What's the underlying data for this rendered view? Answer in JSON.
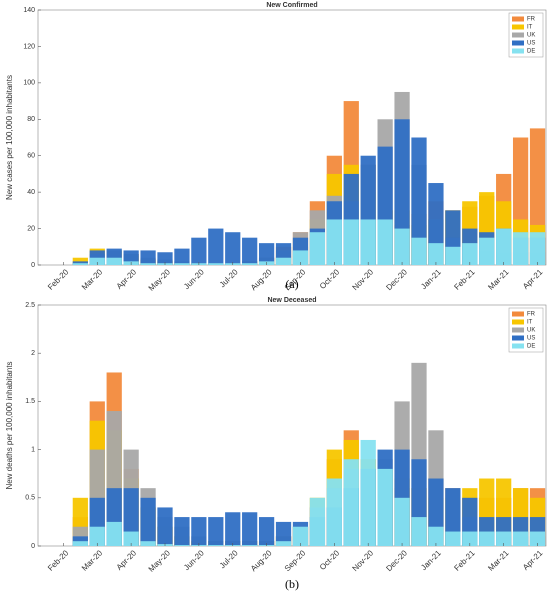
{
  "chart_data": [
    {
      "type": "bar",
      "title": "New Confirmed",
      "ylabel": "New cases per 100,000 inhabitants",
      "caption": "(a)",
      "categories": [
        null,
        "Feb-20",
        null,
        "Mar-20",
        null,
        "Apr-20",
        null,
        "May-20",
        null,
        "Jun-20",
        null,
        "Jul-20",
        null,
        "Aug-20",
        null,
        "Sep-20",
        null,
        "Oct-20",
        null,
        "Nov-20",
        null,
        "Dec-20",
        null,
        "Jan-21",
        null,
        "Feb-21",
        null,
        "Mar-21",
        null,
        "Apr-21"
      ],
      "series": [
        {
          "name": "FR",
          "color": "#f28a3c",
          "values": [
            0,
            0,
            1,
            4,
            7,
            6,
            3,
            2,
            1,
            1,
            1,
            1,
            2,
            4,
            10,
            18,
            35,
            60,
            90,
            55,
            30,
            22,
            28,
            35,
            30,
            32,
            38,
            50,
            70,
            75
          ]
        },
        {
          "name": "IT",
          "color": "#f7c600",
          "values": [
            0,
            0,
            4,
            9,
            8,
            5,
            3,
            2,
            1,
            1,
            1,
            1,
            2,
            3,
            5,
            10,
            25,
            50,
            55,
            40,
            30,
            30,
            22,
            25,
            30,
            35,
            40,
            35,
            25,
            22
          ]
        },
        {
          "name": "UK",
          "color": "#a8a8a8",
          "values": [
            0,
            0,
            1,
            6,
            8,
            6,
            4,
            3,
            2,
            1,
            1,
            1,
            2,
            4,
            8,
            18,
            30,
            38,
            35,
            55,
            80,
            95,
            55,
            25,
            15,
            10,
            8,
            7,
            7,
            7
          ]
        },
        {
          "name": "US",
          "color": "#2f6fc4",
          "values": [
            0,
            0,
            2,
            8,
            9,
            8,
            8,
            7,
            9,
            15,
            20,
            18,
            15,
            12,
            12,
            15,
            20,
            35,
            50,
            60,
            65,
            80,
            70,
            45,
            30,
            20,
            18,
            20,
            15,
            15
          ]
        },
        {
          "name": "DE",
          "color": "#86e2f0",
          "values": [
            0,
            0,
            1,
            4,
            4,
            2,
            1,
            1,
            1,
            1,
            1,
            1,
            1,
            2,
            4,
            8,
            18,
            25,
            25,
            25,
            25,
            20,
            15,
            12,
            10,
            12,
            15,
            20,
            18,
            18
          ]
        }
      ],
      "ylim": [
        0,
        140
      ],
      "yticks": [
        0,
        20,
        40,
        60,
        80,
        100,
        120,
        140
      ],
      "legend": "upper right"
    },
    {
      "type": "bar",
      "title": "New Deceased",
      "ylabel": "New deaths per 100,000 inhabitants",
      "caption": "(b)",
      "categories": [
        null,
        "Feb-20",
        null,
        "Mar-20",
        null,
        "Apr-20",
        null,
        "May-20",
        null,
        "Jun-20",
        null,
        "Jul-20",
        null,
        "Aug-20",
        null,
        "Sep-20",
        null,
        "Oct-20",
        null,
        "Nov-20",
        null,
        "Dec-20",
        null,
        "Jan-21",
        null,
        "Feb-21",
        null,
        "Mar-21",
        null,
        "Apr-21"
      ],
      "series": [
        {
          "name": "FR",
          "color": "#f28a3c",
          "values": [
            0,
            0,
            0.3,
            1.5,
            1.8,
            0.8,
            0.4,
            0.2,
            0.1,
            0.05,
            0.05,
            0.05,
            0.05,
            0.05,
            0.1,
            0.2,
            0.4,
            0.9,
            1.2,
            0.9,
            0.6,
            0.6,
            0.6,
            0.7,
            0.6,
            0.5,
            0.5,
            0.5,
            0.6,
            0.6
          ]
        },
        {
          "name": "IT",
          "color": "#f7c600",
          "values": [
            0,
            0,
            0.5,
            1.3,
            1.2,
            0.7,
            0.4,
            0.2,
            0.1,
            0.05,
            0.05,
            0.05,
            0.05,
            0.05,
            0.1,
            0.2,
            0.5,
            1.0,
            1.1,
            0.9,
            0.8,
            0.7,
            0.6,
            0.5,
            0.5,
            0.6,
            0.7,
            0.7,
            0.6,
            0.5
          ]
        },
        {
          "name": "UK",
          "color": "#a8a8a8",
          "values": [
            0,
            0,
            0.2,
            1.0,
            1.4,
            1.0,
            0.6,
            0.3,
            0.2,
            0.1,
            0.05,
            0.05,
            0.05,
            0.05,
            0.1,
            0.2,
            0.4,
            0.6,
            0.8,
            0.8,
            0.9,
            1.5,
            1.9,
            1.2,
            0.6,
            0.3,
            0.15,
            0.1,
            0.1,
            0.1
          ]
        },
        {
          "name": "US",
          "color": "#2f6fc4",
          "values": [
            0,
            0,
            0.1,
            0.5,
            0.6,
            0.6,
            0.5,
            0.4,
            0.3,
            0.3,
            0.3,
            0.35,
            0.35,
            0.3,
            0.25,
            0.25,
            0.3,
            0.4,
            0.6,
            0.8,
            1.0,
            1.0,
            0.9,
            0.7,
            0.6,
            0.5,
            0.3,
            0.3,
            0.3,
            0.3
          ]
        },
        {
          "name": "DE",
          "color": "#86e2f0",
          "values": [
            0,
            0,
            0.05,
            0.2,
            0.25,
            0.15,
            0.05,
            0.02,
            0.01,
            0.01,
            0.01,
            0.01,
            0.01,
            0.01,
            0.05,
            0.2,
            0.5,
            0.7,
            0.9,
            1.1,
            0.8,
            0.5,
            0.3,
            0.2,
            0.15,
            0.15,
            0.15,
            0.15,
            0.15,
            0.15
          ]
        }
      ],
      "ylim": [
        0,
        2.5
      ],
      "yticks": [
        0,
        0.5,
        1,
        1.5,
        2,
        2.5
      ],
      "legend": "upper right"
    }
  ]
}
